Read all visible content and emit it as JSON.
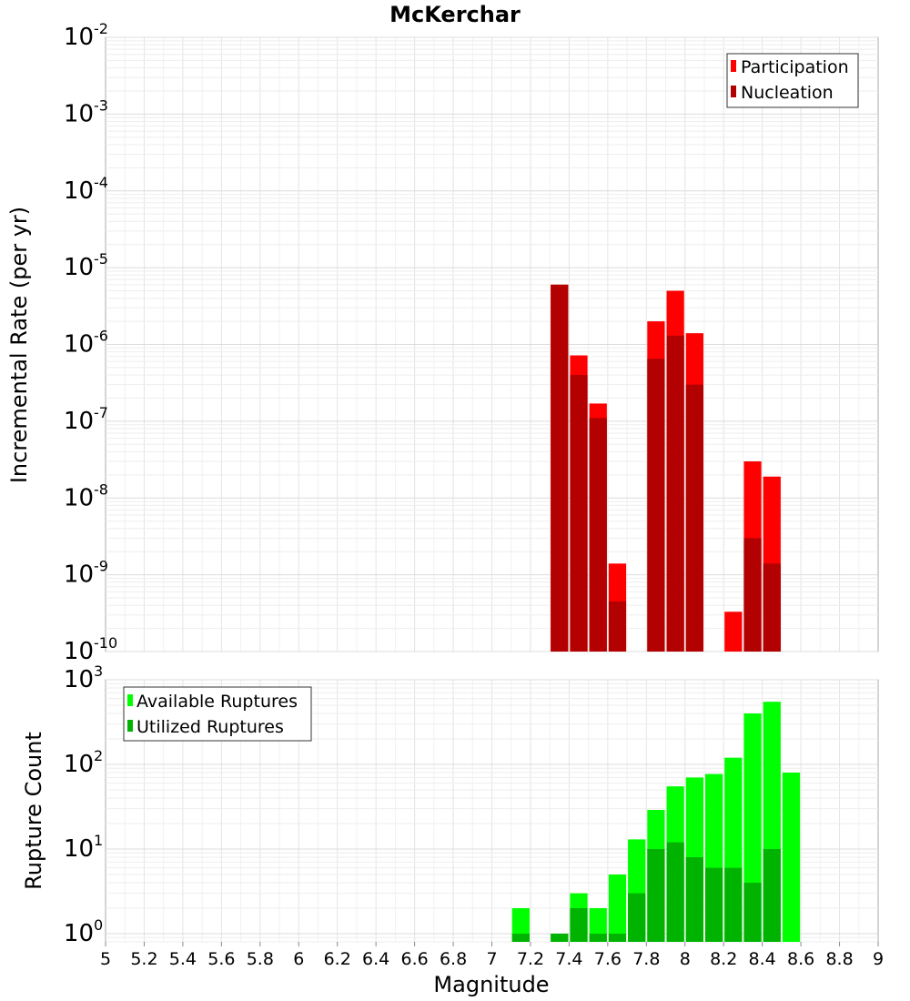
{
  "chart_data": [
    {
      "type": "bar",
      "title": "McKerchar",
      "xlabel": "",
      "ylabel": "Incremental Rate (per yr)",
      "y_scale": "log",
      "ylim": [
        1e-10,
        0.01
      ],
      "xlim": [
        5,
        9
      ],
      "grid": true,
      "legend_position": "top-right",
      "y_tick_exponents": [
        "-10",
        "-9",
        "-8",
        "-7",
        "-6",
        "-5",
        "-4",
        "-3",
        "-2"
      ],
      "y_tick_base": "10",
      "x": [
        7.35,
        7.45,
        7.55,
        7.65,
        7.85,
        7.95,
        8.05,
        8.25,
        8.35,
        8.45
      ],
      "series": [
        {
          "name": "Participation",
          "color": "#ff0000",
          "values": [
            6e-06,
            7.2e-07,
            1.7e-07,
            1.4e-09,
            2e-06,
            5e-06,
            1.4e-06,
            3.3e-10,
            3e-08,
            1.9e-08
          ]
        },
        {
          "name": "Nucleation",
          "color": "#b30000",
          "values": [
            6e-06,
            4e-07,
            1.1e-07,
            4.5e-10,
            6.5e-07,
            1.3e-06,
            3e-07,
            null,
            3e-09,
            1.4e-09
          ]
        }
      ]
    },
    {
      "type": "bar",
      "xlabel": "Magnitude",
      "ylabel": "Rupture Count",
      "y_scale": "log",
      "ylim": [
        0.8,
        1000
      ],
      "xlim": [
        5,
        9
      ],
      "grid": true,
      "legend_position": "top-left",
      "y_tick_exponents": [
        "0",
        "1",
        "2",
        "3"
      ],
      "y_tick_base": "10",
      "x_ticks": [
        "5",
        "5.2",
        "5.4",
        "5.6",
        "5.8",
        "6",
        "6.2",
        "6.4",
        "6.6",
        "6.8",
        "7",
        "7.2",
        "7.4",
        "7.6",
        "7.8",
        "8",
        "8.2",
        "8.4",
        "8.6",
        "8.8",
        "9"
      ],
      "x": [
        7.15,
        7.35,
        7.45,
        7.55,
        7.65,
        7.75,
        7.85,
        7.95,
        8.05,
        8.15,
        8.25,
        8.35,
        8.45,
        8.55
      ],
      "series": [
        {
          "name": "Available Ruptures",
          "color": "#00ff00",
          "values": [
            2,
            1,
            3,
            2,
            5,
            13,
            29,
            55,
            70,
            77,
            120,
            400,
            550,
            80
          ]
        },
        {
          "name": "Utilized Ruptures",
          "color": "#00b300",
          "values": [
            1,
            1,
            2,
            1,
            1,
            3,
            10,
            12,
            8,
            6,
            6,
            4,
            10,
            null
          ]
        }
      ]
    }
  ]
}
